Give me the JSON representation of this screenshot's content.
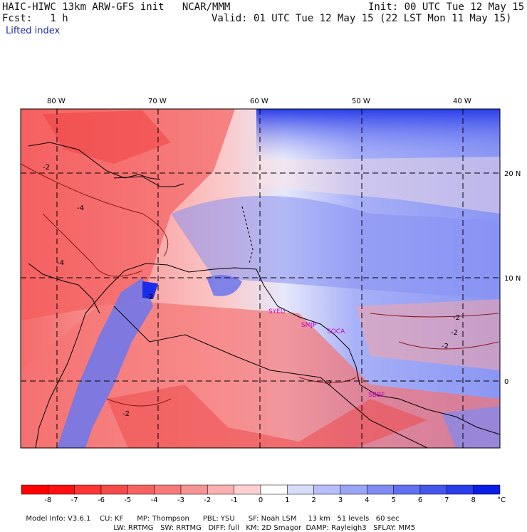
{
  "header": {
    "model_title": "HAIC-HIWC 13km ARW-GFS init   NCAR/MMM",
    "init": "Init: 00 UTC Tue 12 May 15",
    "fcst": "Fcst:   1 h",
    "valid": "Valid: 01 UTC Tue 12 May 15 (22 LST Mon 11 May 15)",
    "field": "Lifted index"
  },
  "axes": {
    "lon_labels": [
      "80 W",
      "70 W",
      "60 W",
      "50 W",
      "40 W"
    ],
    "lat_labels": [
      "20 N",
      "10 N",
      "0"
    ]
  },
  "contour_labels": [
    "-2",
    "-4",
    "-4",
    "-2",
    "-2",
    "-2",
    "-2",
    "-2",
    "-2"
  ],
  "stations": [
    "SYEU",
    "SMJP",
    "SOCA",
    "SBBE"
  ],
  "colorbar": {
    "ticks": [
      "-8",
      "-7",
      "-6",
      "-5",
      "-4",
      "-3",
      "-2",
      "-1",
      "0",
      "1",
      "2",
      "3",
      "4",
      "5",
      "6",
      "7",
      "8"
    ],
    "unit": "°C",
    "colors": [
      "#ff1010",
      "#ff3434",
      "#f54a4a",
      "#f66262",
      "#f77a7a",
      "#f89393",
      "#fbb0b0",
      "#fcd0d0",
      "#ffffff",
      "#d8dcfb",
      "#b7befa",
      "#9aa4f6",
      "#7f8af3",
      "#6170f0",
      "#4456ec",
      "#2a3dea",
      "#0b1ee6"
    ]
  },
  "footer": {
    "line1": [
      "Model Info: V3.6.1",
      "CU: KF",
      "MP: Thompson",
      "PBL: YSU",
      "SF: Noah LSM",
      "13 km",
      "51 levels",
      "60 sec"
    ],
    "line2": [
      "LW: RRTMG",
      "SW: RRTMG",
      "DIFF: full",
      "KM: 2D Smagor",
      "DAMP: Rayleigh3",
      "SFLAY: MM5"
    ]
  }
}
